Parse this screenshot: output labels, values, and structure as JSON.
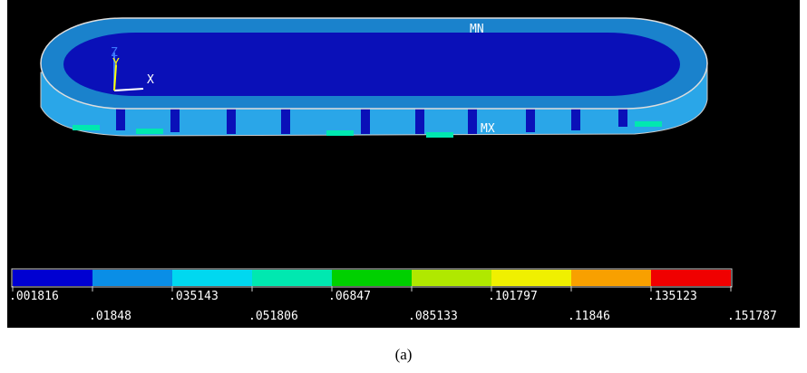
{
  "plot": {
    "labels": {
      "min": "MN",
      "max": "MX"
    },
    "triad": {
      "z": "Z",
      "y": "Y",
      "x": "X"
    }
  },
  "legend": {
    "colors": [
      "#0000d2",
      "#0a8ee6",
      "#00d8f0",
      "#00e8b0",
      "#00d000",
      "#b0e800",
      "#f0f000",
      "#f8a000",
      "#f00000"
    ],
    "ticks": [
      ".001816",
      ".01848",
      ".035143",
      ".051806",
      ".06847",
      ".085133",
      ".101797",
      ".11846",
      ".135123",
      ".151787"
    ]
  },
  "caption": "(a)"
}
